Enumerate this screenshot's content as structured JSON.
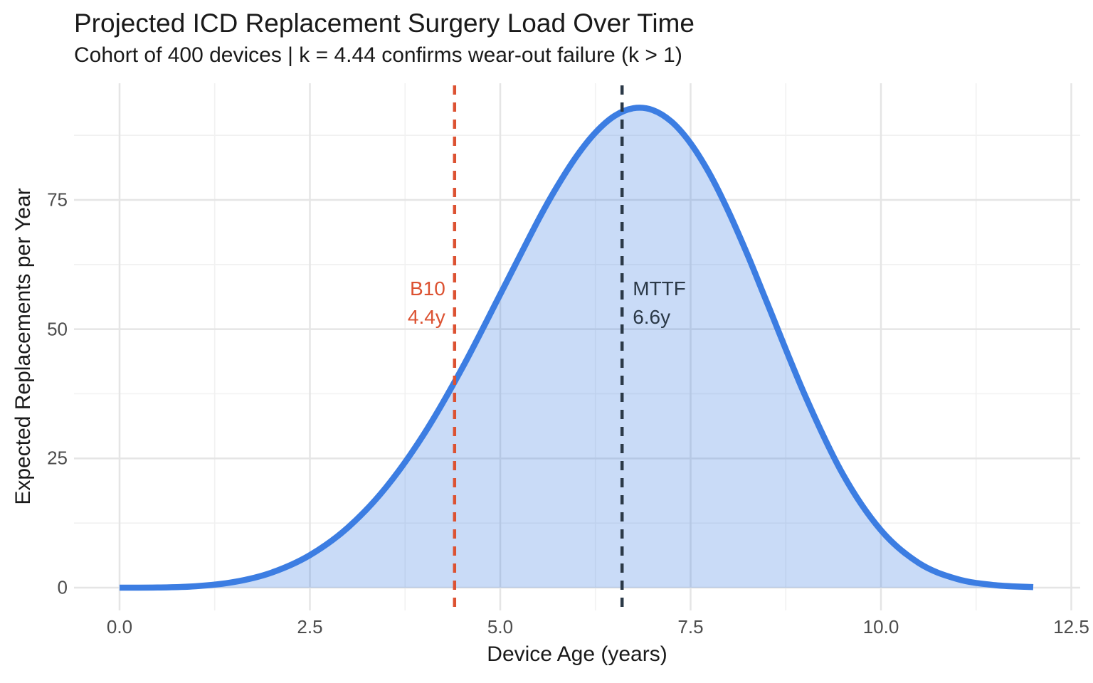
{
  "chart_data": {
    "type": "area",
    "title": "Projected ICD Replacement Surgery Load Over Time",
    "subtitle": "Cohort of 400 devices | k = 4.44 confirms wear-out failure (k > 1)",
    "xlabel": "Device Age (years)",
    "ylabel": "Expected Replacements per Year",
    "xlim": [
      -0.6,
      12.6
    ],
    "ylim": [
      -4.6,
      97.5
    ],
    "grid": "major+minor",
    "legend": "none",
    "x_ticks": [
      {
        "value": 0,
        "label": "0.0"
      },
      {
        "value": 2.5,
        "label": "2.5"
      },
      {
        "value": 5,
        "label": "5.0"
      },
      {
        "value": 7.5,
        "label": "7.5"
      },
      {
        "value": 10,
        "label": "10.0"
      },
      {
        "value": 12.5,
        "label": "12.5"
      }
    ],
    "y_ticks": [
      {
        "value": 0,
        "label": "0"
      },
      {
        "value": 25,
        "label": "25"
      },
      {
        "value": 50,
        "label": "50"
      },
      {
        "value": 75,
        "label": "75"
      }
    ],
    "series": [
      {
        "name": "expected-replacements-per-year",
        "model": "Weibull pdf, k = 4.44, scale = 7.23 years, scaled to cohort of 400 devices",
        "points": [
          [
            0,
            0
          ],
          [
            0.5,
            0.03
          ],
          [
            1,
            0.27
          ],
          [
            1.5,
            1.09
          ],
          [
            2,
            2.93
          ],
          [
            2.5,
            6.29
          ],
          [
            3,
            11.64
          ],
          [
            3.5,
            19.4
          ],
          [
            4,
            29.75
          ],
          [
            4.5,
            42.46
          ],
          [
            5,
            56.74
          ],
          [
            5.5,
            71.11
          ],
          [
            5.75,
            77.67
          ],
          [
            6,
            83.4
          ],
          [
            6.25,
            88.03
          ],
          [
            6.5,
            91.23
          ],
          [
            6.75,
            92.73
          ],
          [
            7,
            92.39
          ],
          [
            7.25,
            90.12
          ],
          [
            7.5,
            85.94
          ],
          [
            7.75,
            80.04
          ],
          [
            8,
            72.69
          ],
          [
            8.25,
            64.29
          ],
          [
            8.5,
            55.26
          ],
          [
            9,
            37.28
          ],
          [
            9.5,
            21.94
          ],
          [
            10,
            11.11
          ],
          [
            10.5,
            4.74
          ],
          [
            11,
            1.68
          ],
          [
            11.5,
            0.48
          ],
          [
            12,
            0.11
          ]
        ]
      }
    ],
    "annotations": [
      {
        "id": "b10",
        "line_x": 4.4,
        "lines": [
          "B10",
          "4.4y"
        ],
        "align": "right",
        "label_center_y": 55,
        "line_style": "dashed",
        "color": "#dc5232"
      },
      {
        "id": "mttf",
        "line_x": 6.6,
        "lines": [
          "MTTF",
          "6.6y"
        ],
        "align": "left",
        "label_center_y": 55,
        "line_style": "dashed",
        "color": "#2b3947"
      }
    ],
    "colors": {
      "curve_stroke": "#3c7de2",
      "curve_fill": "rgba(60,125,226,0.28)",
      "grid_major": "#e5e5e5",
      "grid_minor": "#f1f1f1",
      "tick_text": "#4d4d4d",
      "title_text": "#1a1a1a",
      "background": "#ffffff"
    }
  }
}
